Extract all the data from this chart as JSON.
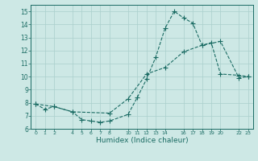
{
  "xlabel": "Humidex (Indice chaleur)",
  "bg_color": "#cde8e5",
  "line_color": "#1a6b63",
  "grid_color": "#aacfcc",
  "xlim": [
    -0.5,
    23.5
  ],
  "ylim": [
    6,
    15.5
  ],
  "yticks": [
    6,
    7,
    8,
    9,
    10,
    11,
    12,
    13,
    14,
    15
  ],
  "xtick_positions": [
    0,
    1,
    2,
    4,
    5,
    6,
    7,
    8,
    10,
    11,
    12,
    13,
    14,
    16,
    17,
    18,
    19,
    20,
    22,
    23
  ],
  "xtick_labels": [
    "0",
    "1",
    "2",
    "4",
    "5",
    "6",
    "7",
    "8",
    "10",
    "11",
    "12",
    "13",
    "14",
    "16",
    "17",
    "18",
    "19",
    "20",
    "22",
    "23"
  ],
  "line1_x": [
    0,
    1,
    2,
    4,
    5,
    6,
    7,
    8,
    10,
    11,
    12,
    13,
    14,
    15,
    16,
    17,
    18,
    19,
    20,
    22,
    23
  ],
  "line1_y": [
    7.9,
    7.5,
    7.7,
    7.3,
    6.7,
    6.6,
    6.5,
    6.6,
    7.1,
    8.4,
    9.8,
    11.5,
    13.7,
    15.0,
    14.5,
    14.1,
    12.4,
    12.6,
    10.2,
    10.1,
    10.0
  ],
  "line2_x": [
    0,
    2,
    4,
    8,
    10,
    12,
    14,
    16,
    18,
    20,
    22,
    23
  ],
  "line2_y": [
    7.9,
    7.7,
    7.3,
    7.2,
    8.3,
    10.2,
    10.7,
    11.9,
    12.4,
    12.7,
    9.9,
    10.0
  ],
  "marker_size": 2.0,
  "linewidth": 0.8
}
